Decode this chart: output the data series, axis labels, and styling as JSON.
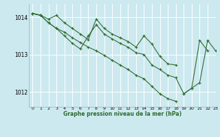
{
  "background_color": "#cce9f0",
  "grid_color": "#ffffff",
  "line_color": "#2d6a2d",
  "title": "Graphe pression niveau de la mer (hPa)",
  "xlim": [
    -0.5,
    23
  ],
  "ylim": [
    1011.6,
    1014.35
  ],
  "yticks": [
    1012,
    1013,
    1014
  ],
  "xticks": [
    0,
    1,
    2,
    3,
    4,
    5,
    6,
    7,
    8,
    9,
    10,
    11,
    12,
    13,
    14,
    15,
    16,
    17,
    18,
    19,
    20,
    21,
    22,
    23
  ],
  "series": [
    [
      1014.1,
      1014.05,
      1013.95,
      1014.05,
      1013.85,
      1013.7,
      1013.55,
      1013.4,
      1013.95,
      1013.7,
      1013.55,
      1013.45,
      1013.35,
      1013.2,
      1013.5,
      1013.28,
      1012.95,
      1012.75,
      1012.72,
      null,
      null,
      null,
      null,
      null
    ],
    [
      1014.1,
      1014.05,
      1013.85,
      1013.7,
      1013.5,
      1013.3,
      1013.15,
      1013.5,
      1013.8,
      1013.55,
      1013.42,
      1013.3,
      1013.2,
      1013.05,
      1013.0,
      1012.72,
      1012.6,
      1012.45,
      1012.38,
      1011.95,
      1012.1,
      1013.38,
      1013.1,
      null
    ],
    [
      1014.1,
      1014.05,
      1013.85,
      1013.7,
      1013.6,
      1013.45,
      1013.32,
      1013.2,
      1013.1,
      1012.98,
      1012.85,
      1012.72,
      1012.6,
      1012.45,
      1012.35,
      1012.15,
      1011.95,
      1011.82,
      1011.75,
      null,
      null,
      null,
      null,
      null
    ],
    [
      1014.1,
      1014.05,
      null,
      null,
      null,
      null,
      null,
      null,
      null,
      null,
      null,
      null,
      null,
      null,
      null,
      null,
      null,
      null,
      null,
      1011.95,
      1012.1,
      1012.25,
      1013.38,
      1013.1
    ]
  ]
}
